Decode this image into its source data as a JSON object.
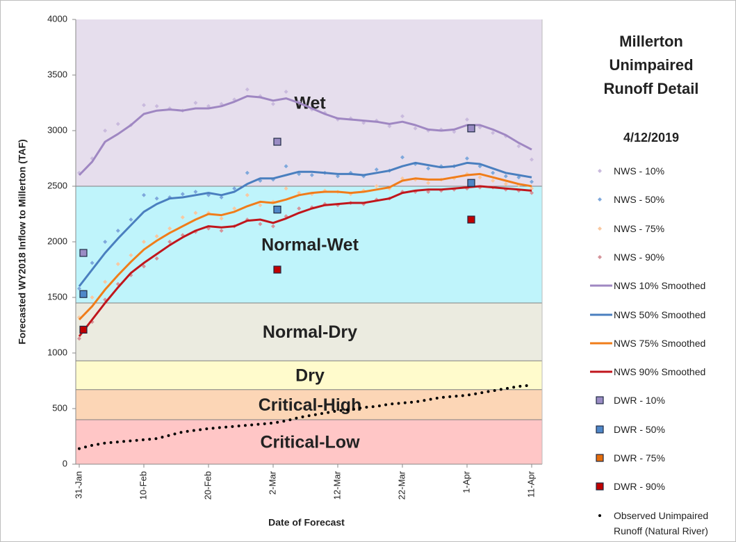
{
  "chart_data": {
    "type": "line",
    "title": "Millerton Unimpaired Runoff Detail",
    "subtitle": "4/12/2019",
    "x_label": "Date of Forecast",
    "y_label": "Forecasted WY2018 Inflow to Millerton (TAF)",
    "categories": [
      "31-Jan",
      null,
      null,
      null,
      null,
      "10-Feb",
      null,
      null,
      null,
      null,
      "20-Feb",
      null,
      null,
      null,
      null,
      "2-Mar",
      null,
      null,
      null,
      null,
      "12-Mar",
      null,
      null,
      null,
      null,
      "22-Mar",
      null,
      null,
      null,
      null,
      "1-Apr",
      null,
      null,
      null,
      null,
      "11-Apr"
    ],
    "ylim": [
      0,
      4000
    ],
    "yticks": [
      0,
      500,
      1000,
      1500,
      2000,
      2500,
      3000,
      3500,
      4000
    ],
    "zones": [
      {
        "name": "Wet",
        "from": 2500,
        "to": 4000,
        "color": "#e6deed",
        "label_color": "#c7b8dc"
      },
      {
        "name": "Normal-Wet",
        "from": 1450,
        "to": 2500,
        "color": "#bff4fb",
        "label_color": "#6ea6d6"
      },
      {
        "name": "Normal-Dry",
        "from": 930,
        "to": 1450,
        "color": "#ebebe0",
        "label_color": "#d6dfb6"
      },
      {
        "name": "Dry",
        "from": 670,
        "to": 930,
        "color": "#fffbcc",
        "label_color": "#e3ddc6"
      },
      {
        "name": "Critical-High",
        "from": 400,
        "to": 670,
        "color": "#fcd6b6",
        "label_color": "#f6b07a"
      },
      {
        "name": "Critical-Low",
        "from": 0,
        "to": 400,
        "color": "#ffc6c6",
        "label_color": "#f09c9c"
      }
    ],
    "series": [
      {
        "name": "NWS - 10%",
        "kind": "points",
        "color": "#c9badd",
        "values": [
          2620,
          2750,
          3000,
          3060,
          3050,
          3230,
          3220,
          3200,
          3180,
          3250,
          3220,
          3240,
          3280,
          3370,
          3310,
          3240,
          3350,
          3260,
          3190,
          3160,
          3100,
          3110,
          3070,
          3090,
          3040,
          3130,
          3020,
          3000,
          3010,
          2990,
          3100,
          3030,
          2980,
          2950,
          2860,
          2740
        ]
      },
      {
        "name": "NWS - 50%",
        "kind": "points",
        "color": "#7ea8dc",
        "values": [
          1580,
          1810,
          2000,
          2100,
          2200,
          2420,
          2390,
          2400,
          2430,
          2450,
          2420,
          2400,
          2480,
          2620,
          2550,
          2560,
          2680,
          2610,
          2600,
          2620,
          2590,
          2620,
          2590,
          2650,
          2640,
          2760,
          2700,
          2660,
          2680,
          2680,
          2750,
          2680,
          2620,
          2590,
          2580,
          2540
        ]
      },
      {
        "name": "NWS - 75%",
        "kind": "points",
        "color": "#f9c8a0",
        "values": [
          1320,
          1500,
          1640,
          1800,
          1880,
          2000,
          2050,
          2120,
          2220,
          2260,
          2260,
          2210,
          2300,
          2420,
          2330,
          2360,
          2480,
          2440,
          2430,
          2460,
          2450,
          2430,
          2460,
          2500,
          2480,
          2570,
          2560,
          2530,
          2560,
          2570,
          2610,
          2580,
          2550,
          2520,
          2510,
          2480
        ]
      },
      {
        "name": "NWS - 90%",
        "kind": "points",
        "color": "#d5939a",
        "values": [
          1130,
          1280,
          1480,
          1620,
          1700,
          1780,
          1850,
          2000,
          2060,
          2090,
          2120,
          2100,
          2140,
          2200,
          2160,
          2140,
          2230,
          2300,
          2310,
          2340,
          2330,
          2350,
          2340,
          2380,
          2390,
          2450,
          2450,
          2450,
          2460,
          2470,
          2480,
          2490,
          2490,
          2470,
          2460,
          2440
        ]
      },
      {
        "name": "NWS 10% Smoothed",
        "kind": "line",
        "color": "#9f87c2",
        "values": [
          2600,
          2720,
          2900,
          2970,
          3050,
          3150,
          3180,
          3190,
          3180,
          3200,
          3200,
          3220,
          3260,
          3310,
          3300,
          3270,
          3290,
          3250,
          3200,
          3150,
          3110,
          3100,
          3090,
          3080,
          3060,
          3080,
          3050,
          3010,
          3000,
          3010,
          3050,
          3050,
          3010,
          2960,
          2890,
          2830
        ]
      },
      {
        "name": "NWS 50% Smoothed",
        "kind": "line",
        "color": "#4a7fbf",
        "values": [
          1600,
          1750,
          1900,
          2030,
          2150,
          2270,
          2340,
          2390,
          2400,
          2420,
          2440,
          2420,
          2450,
          2520,
          2570,
          2570,
          2600,
          2630,
          2630,
          2620,
          2610,
          2610,
          2600,
          2620,
          2640,
          2680,
          2710,
          2690,
          2670,
          2680,
          2710,
          2700,
          2660,
          2620,
          2600,
          2580
        ]
      },
      {
        "name": "NWS 75% Smoothed",
        "kind": "line",
        "color": "#f07d1a",
        "values": [
          1300,
          1420,
          1570,
          1700,
          1820,
          1930,
          2010,
          2080,
          2140,
          2200,
          2250,
          2240,
          2270,
          2320,
          2360,
          2350,
          2380,
          2420,
          2440,
          2450,
          2450,
          2440,
          2450,
          2470,
          2490,
          2550,
          2570,
          2560,
          2560,
          2580,
          2600,
          2610,
          2580,
          2550,
          2520,
          2500
        ]
      },
      {
        "name": "NWS 90% Smoothed",
        "kind": "line",
        "color": "#c0161c",
        "values": [
          1150,
          1300,
          1450,
          1590,
          1720,
          1810,
          1890,
          1970,
          2040,
          2100,
          2140,
          2130,
          2140,
          2190,
          2200,
          2170,
          2210,
          2260,
          2300,
          2330,
          2340,
          2350,
          2350,
          2370,
          2390,
          2440,
          2460,
          2470,
          2470,
          2480,
          2490,
          2500,
          2490,
          2480,
          2470,
          2460
        ]
      },
      {
        "name": "DWR - 10%",
        "kind": "square",
        "color": "#9a8cc4",
        "values": [
          1900,
          null,
          null,
          null,
          null,
          null,
          null,
          null,
          null,
          null,
          null,
          null,
          null,
          null,
          null,
          2900,
          null,
          null,
          null,
          null,
          null,
          null,
          null,
          null,
          null,
          null,
          null,
          null,
          null,
          null,
          3020,
          null,
          null,
          null,
          null,
          null
        ]
      },
      {
        "name": "DWR - 50%",
        "kind": "square",
        "color": "#4f87c8",
        "values": [
          1530,
          null,
          null,
          null,
          null,
          null,
          null,
          null,
          null,
          null,
          null,
          null,
          null,
          null,
          null,
          2290,
          null,
          null,
          null,
          null,
          null,
          null,
          null,
          null,
          null,
          null,
          null,
          null,
          null,
          null,
          2530,
          null,
          null,
          null,
          null,
          null
        ]
      },
      {
        "name": "DWR - 75%",
        "kind": "square",
        "color": "#e46c0a",
        "values": [
          null,
          null,
          null,
          null,
          null,
          null,
          null,
          null,
          null,
          null,
          null,
          null,
          null,
          null,
          null,
          null,
          null,
          null,
          null,
          null,
          null,
          null,
          null,
          null,
          null,
          null,
          null,
          null,
          null,
          null,
          null,
          null,
          null,
          null,
          null,
          null
        ]
      },
      {
        "name": "DWR - 90%",
        "kind": "square",
        "color": "#c00000",
        "values": [
          1210,
          null,
          null,
          null,
          null,
          null,
          null,
          null,
          null,
          null,
          null,
          null,
          null,
          null,
          null,
          1750,
          null,
          null,
          null,
          null,
          null,
          null,
          null,
          null,
          null,
          null,
          null,
          null,
          null,
          null,
          2200,
          null,
          null,
          null,
          null,
          null
        ]
      },
      {
        "name": "Observed Unimpaired Runoff (Natural River)",
        "kind": "dots",
        "color": "#000000",
        "values": [
          140,
          170,
          190,
          200,
          210,
          220,
          230,
          260,
          290,
          305,
          320,
          330,
          340,
          350,
          360,
          370,
          390,
          420,
          440,
          460,
          480,
          490,
          510,
          520,
          540,
          550,
          560,
          580,
          600,
          610,
          620,
          640,
          660,
          680,
          700,
          710
        ]
      }
    ]
  }
}
